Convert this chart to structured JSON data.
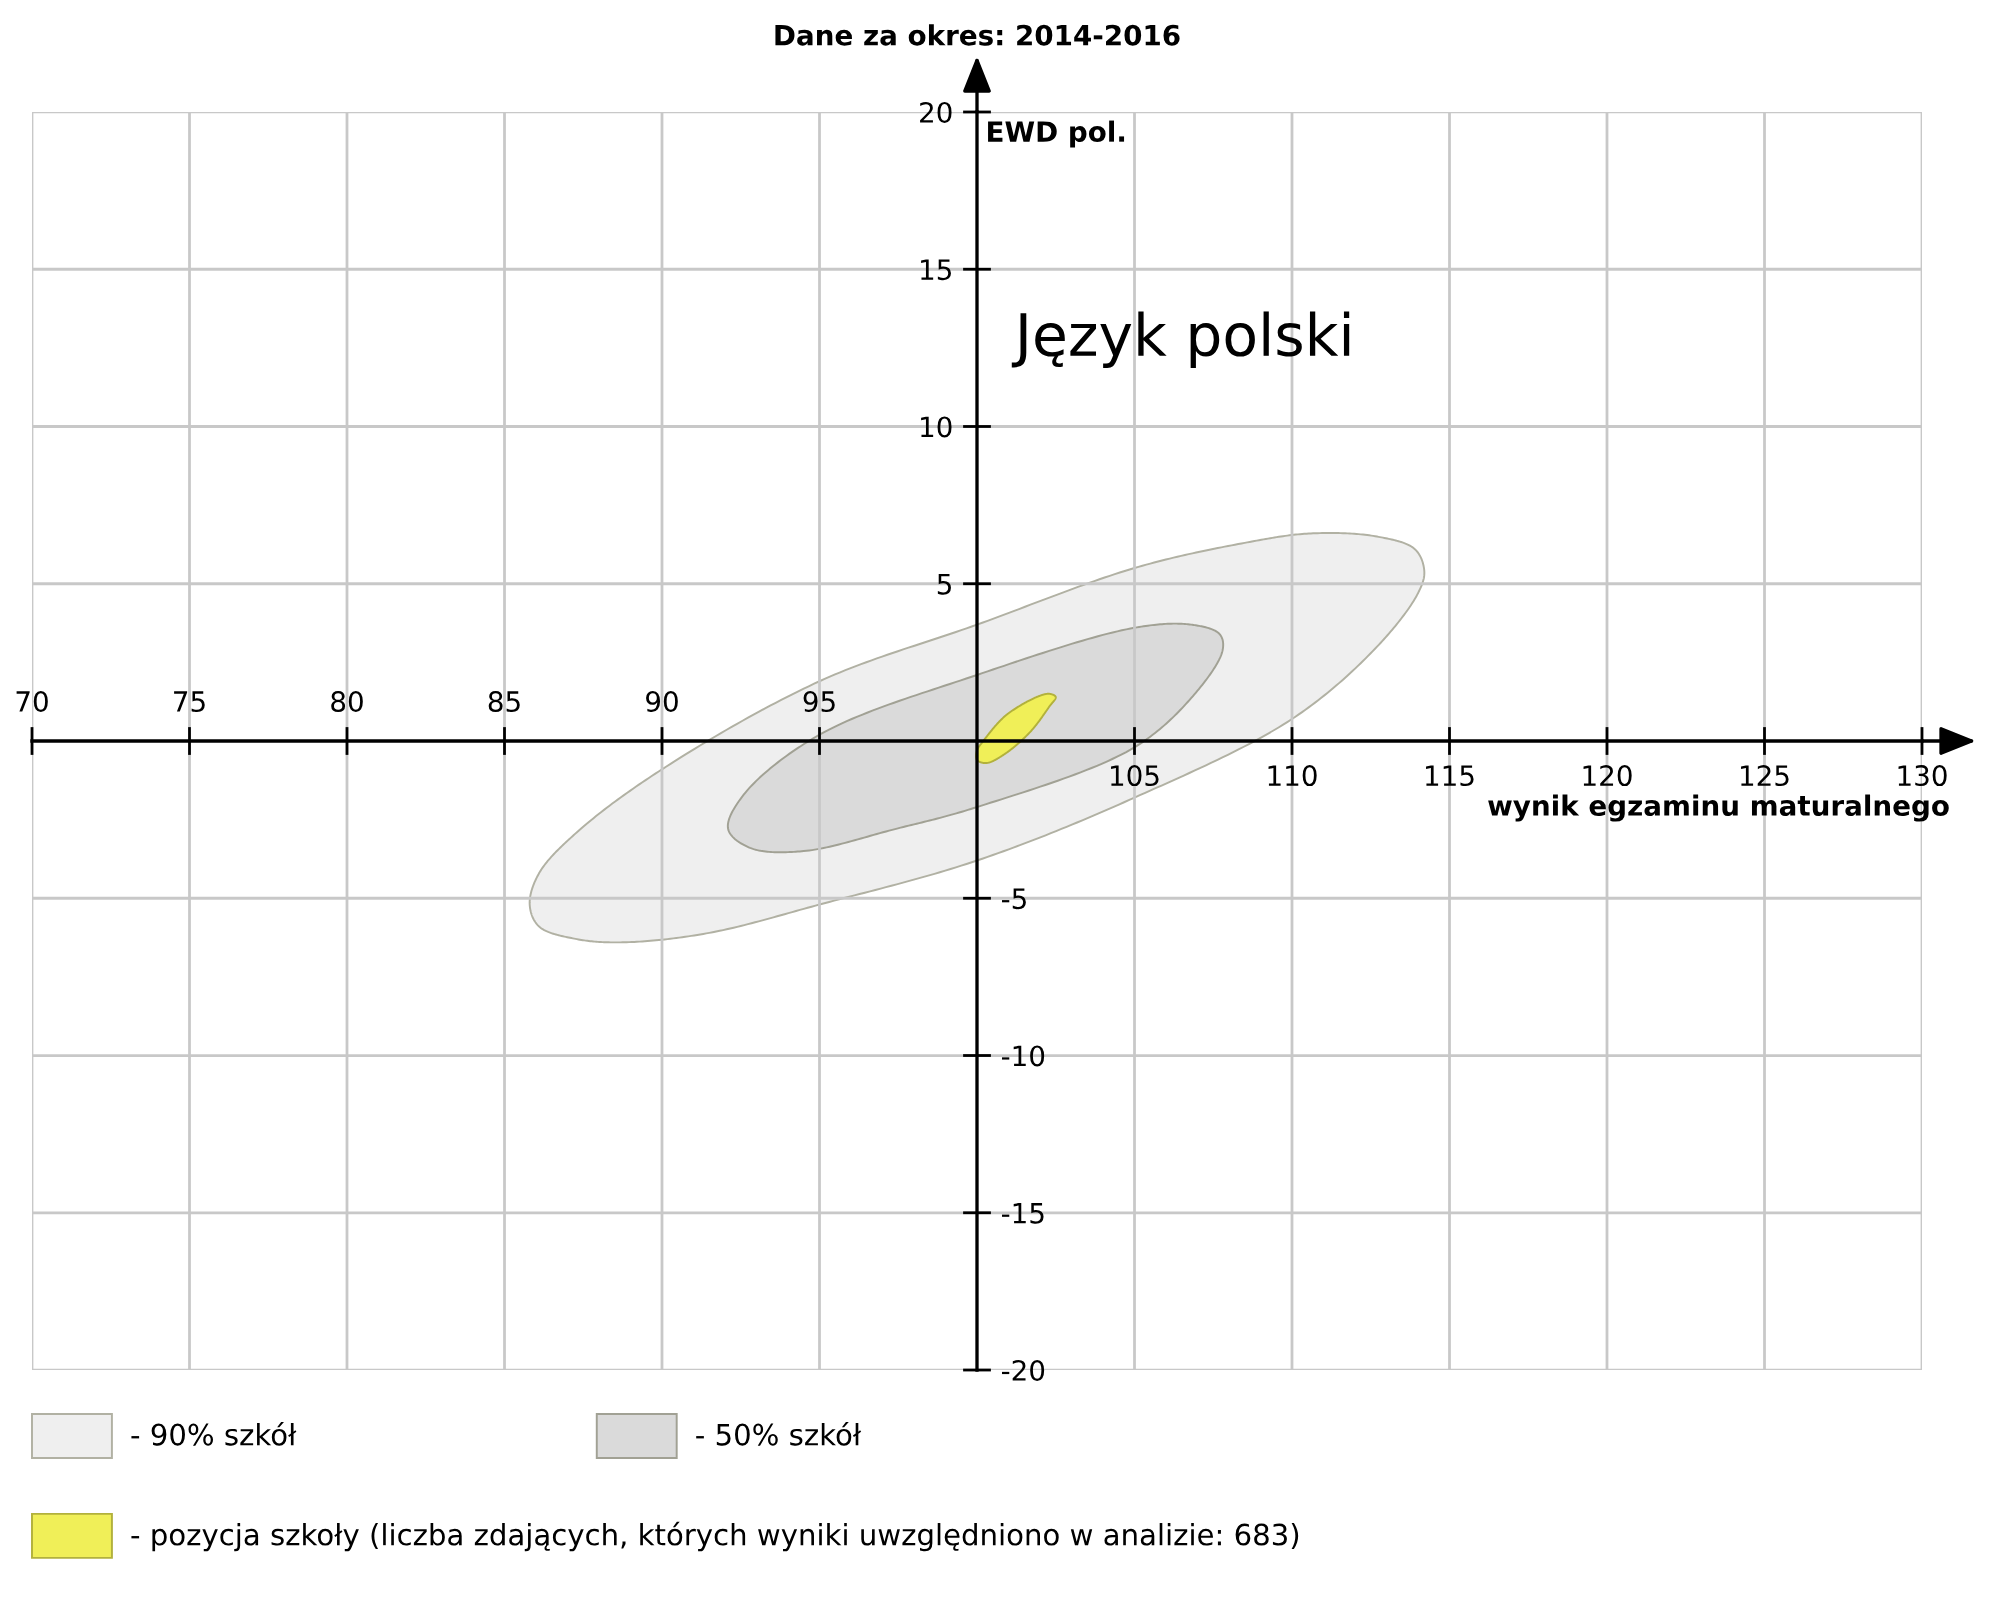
{
  "chart_data": {
    "type": "area",
    "title": "Dane za okres: 2014-2016",
    "xlabel": "wynik egzaminu maturalnego",
    "y2label": "EWD pol.",
    "annotations": [
      "Język polski"
    ],
    "xlim": [
      70,
      130
    ],
    "ylim": [
      -20,
      20
    ],
    "xticks": [
      105,
      110,
      115,
      120,
      125,
      130
    ],
    "x2lim": [
      70,
      130
    ],
    "x2ticks": [
      70,
      75,
      80,
      85,
      90,
      95
    ],
    "yticks": [
      5,
      10,
      15,
      20
    ],
    "y2lim": [
      -20,
      20
    ],
    "y2ticks": [
      -20,
      -15,
      -10,
      -5
    ],
    "grid": true,
    "legend": "bottom",
    "series": [
      {
        "name": "- 90% szkół",
        "color": "#efefef",
        "x": [
          85.8,
          86.1,
          87.3,
          88.8,
          91.5,
          95.0,
          100.0,
          105.0,
          110.0,
          112.7,
          114.0,
          114.2,
          113.9,
          112.7,
          110.6,
          108.5,
          105.0,
          100.0,
          95.0,
          90.0,
          87.3,
          86.1
        ],
        "values": [
          -5.2,
          -5.9,
          -6.3,
          -6.4,
          -6.1,
          -5.2,
          -3.8,
          -1.8,
          0.7,
          3.0,
          4.7,
          5.4,
          6.1,
          6.5,
          6.6,
          6.3,
          5.5,
          3.7,
          1.9,
          -0.9,
          -2.9,
          -4.2
        ]
      },
      {
        "name": "- 50% szkół",
        "color": "#dadada",
        "x": [
          92.1,
          92.8,
          94.5,
          97.4,
          100.0,
          105.0,
          107.0,
          107.8,
          107.7,
          106.8,
          105.0,
          100.0,
          95.0,
          92.6
        ],
        "values": [
          -2.8,
          -3.4,
          -3.5,
          -2.8,
          -2.1,
          -0.2,
          1.6,
          2.9,
          3.4,
          3.7,
          3.6,
          2.1,
          0.2,
          -1.7
        ]
      },
      {
        "name": "- pozycja szkoły (liczba zdających, których wyniki uwzględniono w analizie: 683)",
        "color": "#f0ef58",
        "x": [
          100.0,
          100.3,
          100.9,
          101.7,
          102.3,
          102.5,
          102.3,
          101.9,
          100.9,
          100.2,
          100.0
        ],
        "values": [
          -0.6,
          -0.7,
          -0.4,
          0.3,
          1.1,
          1.4,
          1.5,
          1.4,
          0.8,
          0.0,
          -0.3
        ]
      }
    ]
  }
}
